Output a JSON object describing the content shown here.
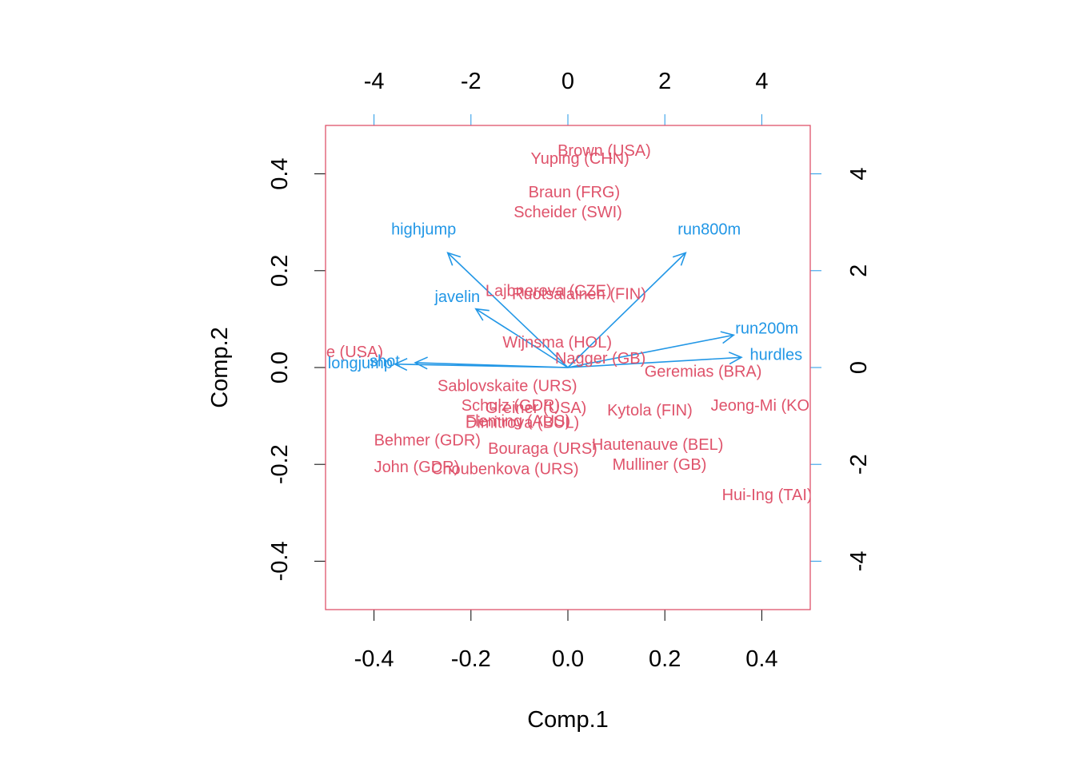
{
  "colors": {
    "observations": "#DF536B",
    "variables": "#2297E6",
    "axes": "#000000",
    "frame": "#DF536B"
  },
  "chart_data": {
    "type": "scatter",
    "subtype": "biplot",
    "title": "",
    "xlabel": "Comp.1",
    "ylabel": "Comp.2",
    "xlim": [
      -0.5,
      0.5
    ],
    "ylim": [
      -0.5,
      0.5
    ],
    "bottom_ticks": [
      "-0.4",
      "-0.2",
      "0.0",
      "0.2",
      "0.4"
    ],
    "left_ticks": [
      "-0.4",
      "-0.2",
      "0.0",
      "0.2",
      "0.4"
    ],
    "top_ticks": [
      "-4",
      "-2",
      "0",
      "2",
      "4"
    ],
    "right_ticks": [
      "-4",
      "-2",
      "0",
      "2",
      "4"
    ],
    "variable_axis_range": [
      -5,
      5
    ],
    "grid": false,
    "observations": [
      {
        "label": "Brown (USA)",
        "x": 0.075,
        "y": 0.447
      },
      {
        "label": "Yuping (CHN)",
        "x": 0.025,
        "y": 0.431
      },
      {
        "label": "Braun (FRG)",
        "x": 0.013,
        "y": 0.361
      },
      {
        "label": "Scheider (SWI)",
        "x": 0.0,
        "y": 0.32
      },
      {
        "label": "Lajbnerova (CZE)",
        "x": -0.04,
        "y": 0.158
      },
      {
        "label": "Ruotsalainen (FIN)",
        "x": 0.023,
        "y": 0.151
      },
      {
        "label": "Wijnsma (HOL)",
        "x": -0.022,
        "y": 0.051
      },
      {
        "label": "Joyner-Kersee (USA)",
        "x": -0.538,
        "y": 0.031
      },
      {
        "label": "Nagger (GB)",
        "x": 0.067,
        "y": 0.018
      },
      {
        "label": "Geremias (BRA)",
        "x": 0.279,
        "y": -0.009
      },
      {
        "label": "Sablovskaite (URS)",
        "x": -0.125,
        "y": -0.039
      },
      {
        "label": "Schulz (GDR)",
        "x": -0.118,
        "y": -0.079
      },
      {
        "label": "Greiner (USA)",
        "x": -0.066,
        "y": -0.084
      },
      {
        "label": "Kytola (FIN)",
        "x": 0.169,
        "y": -0.089
      },
      {
        "label": "Jeong-Mi (KOR)",
        "x": 0.414,
        "y": -0.079
      },
      {
        "label": "Fleming (AUS)",
        "x": -0.103,
        "y": -0.111
      },
      {
        "label": "Dimitrova (BUL)",
        "x": -0.094,
        "y": -0.115
      },
      {
        "label": "Behmer (GDR)",
        "x": -0.29,
        "y": -0.151
      },
      {
        "label": "Bouraga (URS)",
        "x": -0.052,
        "y": -0.168
      },
      {
        "label": "Hautenauve (BEL)",
        "x": 0.185,
        "y": -0.16
      },
      {
        "label": "John (GDR)",
        "x": -0.312,
        "y": -0.206
      },
      {
        "label": "Choubenkova (URS)",
        "x": -0.13,
        "y": -0.21
      },
      {
        "label": "Mulliner (GB)",
        "x": 0.189,
        "y": -0.201
      },
      {
        "label": "Hui-Ing (TAI)",
        "x": 0.411,
        "y": -0.264
      }
    ],
    "variables": [
      {
        "label": "highjump",
        "x": -2.48,
        "y": 2.37
      },
      {
        "label": "run800m",
        "x": 2.43,
        "y": 2.37
      },
      {
        "label": "javelin",
        "x": -1.9,
        "y": 1.21
      },
      {
        "label": "run200m",
        "x": 3.42,
        "y": 0.67
      },
      {
        "label": "hurdles",
        "x": 3.58,
        "y": 0.21
      },
      {
        "label": "longjump",
        "x": -3.57,
        "y": 0.07
      },
      {
        "label": "shot",
        "x": -3.15,
        "y": 0.1
      }
    ]
  }
}
